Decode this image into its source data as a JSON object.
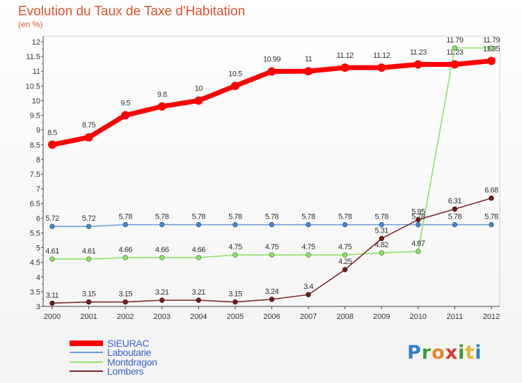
{
  "title": "Evolution du Taux de Taxe d'Habitation",
  "subtitle": "(en %)",
  "logo": "Proxiti",
  "colors": {
    "title": "#e0502c",
    "legend_text": "#3a63c8"
  },
  "chart_data": {
    "type": "line",
    "x": [
      "2000",
      "2001",
      "2002",
      "2003",
      "2004",
      "2005",
      "2006",
      "2007",
      "2008",
      "2009",
      "2010",
      "2011",
      "2012"
    ],
    "ylim": [
      3,
      12
    ],
    "yticks": [
      "3",
      "3.5",
      "4",
      "4.5",
      "5",
      "5.5",
      "6",
      "6.5",
      "7",
      "7.5",
      "8",
      "8.5",
      "9",
      "9.5",
      "10",
      "10.5",
      "11",
      "11.5",
      "12"
    ],
    "grid": false,
    "legend_placement": "bottom-left",
    "series": [
      {
        "name": "SIEURAC",
        "color": "#ff0000",
        "values": [
          8.5,
          8.75,
          9.5,
          9.8,
          10,
          10.5,
          10.99,
          11,
          11.12,
          11.12,
          11.23,
          11.23,
          11.35
        ],
        "labels": [
          "8.5",
          "8.75",
          "9.5",
          "9.8",
          "10",
          "10.5",
          "10.99",
          "11",
          "11.12",
          "11.12",
          "11.23",
          "11.23",
          "11.35"
        ]
      },
      {
        "name": "Laboutarie",
        "color": "#6a9fd8",
        "values": [
          5.72,
          5.72,
          5.78,
          5.78,
          5.78,
          5.78,
          5.78,
          5.78,
          5.78,
          5.78,
          5.78,
          5.78,
          5.78
        ],
        "labels": [
          "5.72",
          "5.72",
          "5.78",
          "5.78",
          "5.78",
          "5.78",
          "5.78",
          "5.78",
          "5.78",
          "5.78",
          "5.78",
          "5.78",
          "5.78"
        ]
      },
      {
        "name": "Montdragon",
        "color": "#8ee06a",
        "values": [
          4.61,
          4.61,
          4.66,
          4.66,
          4.66,
          4.75,
          4.75,
          4.75,
          4.75,
          4.82,
          4.87,
          11.79,
          11.79
        ],
        "labels": [
          "4.61",
          "4.61",
          "4.66",
          "4.66",
          "4.66",
          "4.75",
          "4.75",
          "4.75",
          "4.75",
          "4.82",
          "4.87",
          "11.79",
          "11.79"
        ]
      },
      {
        "name": "Lombers",
        "color": "#7a2a2a",
        "values": [
          3.11,
          3.15,
          3.15,
          3.21,
          3.21,
          3.15,
          3.24,
          3.4,
          4.25,
          5.31,
          5.95,
          6.31,
          6.68
        ],
        "labels": [
          "3.11",
          "3.15",
          "3.15",
          "3.21",
          "3.21",
          "3.15",
          "3.24",
          "3.4",
          "4.25",
          "5.31",
          "5.95",
          "6.31",
          "6.68"
        ]
      }
    ]
  }
}
